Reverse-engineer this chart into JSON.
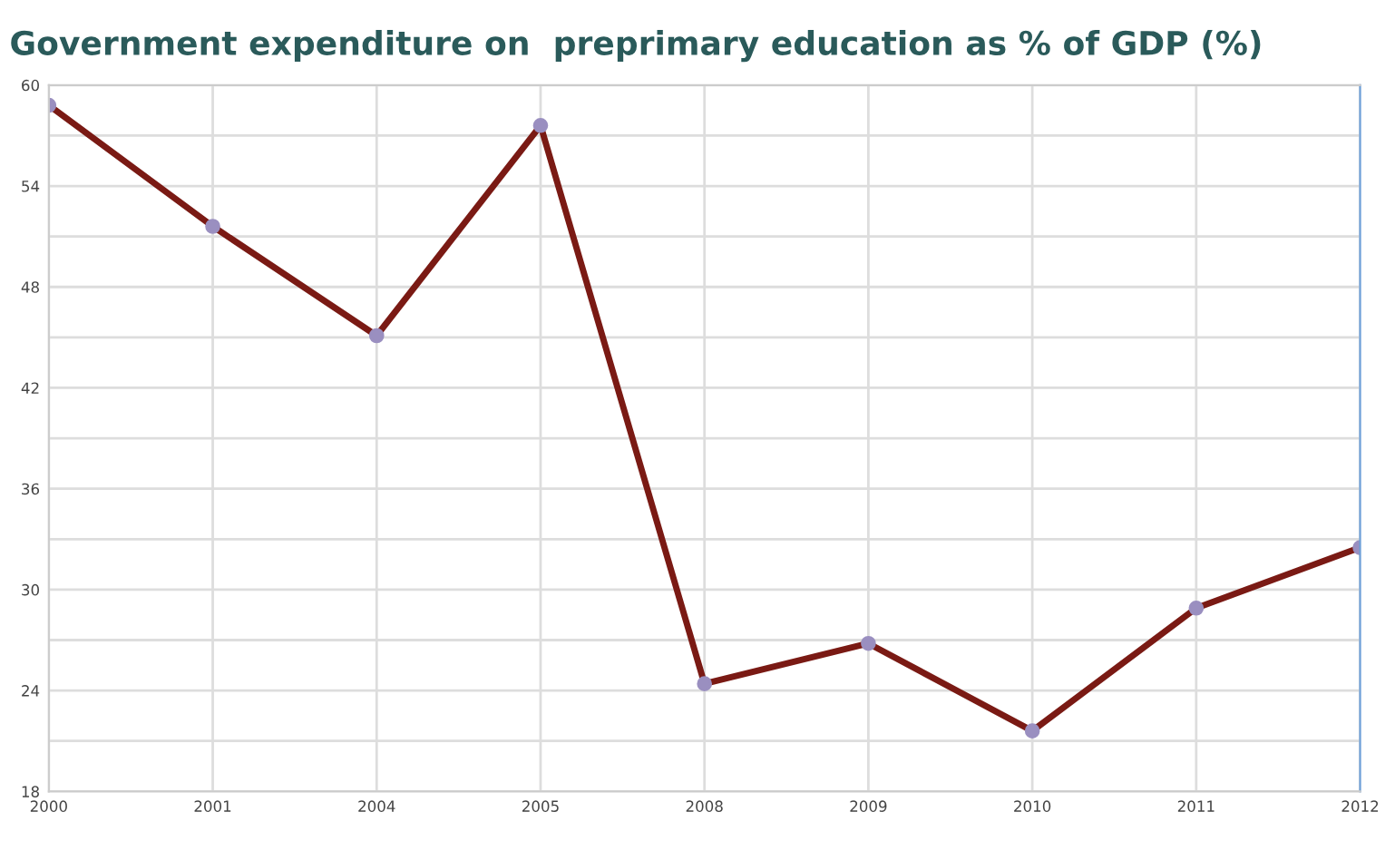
{
  "chart_data": {
    "type": "line",
    "title": "Government expenditure on  preprimary education as % of GDP (%)",
    "categories": [
      "2000",
      "2001",
      "2004",
      "2005",
      "2008",
      "2009",
      "2010",
      "2011",
      "2012"
    ],
    "series": [
      {
        "color": "#7a1a14",
        "values": [
          58.8,
          51.6,
          45.1,
          57.6,
          24.4,
          26.8,
          21.6,
          28.9,
          32.5
        ]
      }
    ],
    "ylim": [
      18,
      60
    ],
    "yticks": [
      18,
      {
        "value": 21,
        "label": null
      },
      24,
      {
        "value": 27,
        "label": null
      },
      30,
      {
        "value": 33,
        "label": null
      },
      36,
      {
        "value": 39,
        "label": null
      },
      42,
      {
        "value": 45,
        "label": null
      },
      48,
      {
        "value": 51,
        "label": null
      },
      54,
      {
        "value": 57,
        "label": null
      },
      60
    ],
    "grid": true,
    "marker": "circle",
    "line_style": "solid"
  }
}
